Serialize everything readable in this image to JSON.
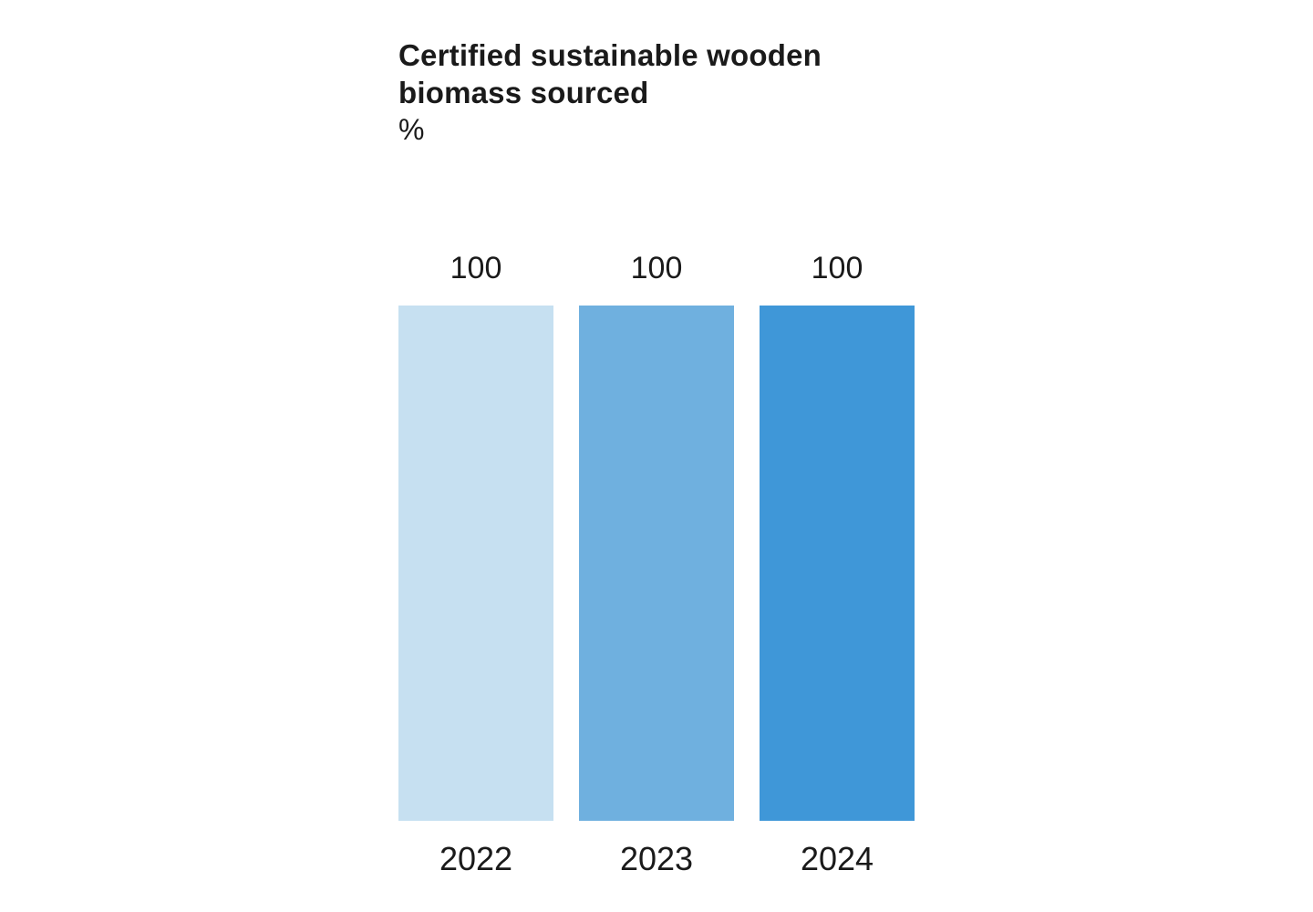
{
  "header": {
    "title_line1": "Certified sustainable wooden",
    "title_line2": "biomass sourced",
    "unit": "%"
  },
  "colors": {
    "background": "#ffffff",
    "text": "#1a1a1a",
    "bar_2022": "#c6e0f1",
    "bar_2023": "#6fb0df",
    "bar_2024": "#3f97d8"
  },
  "chart_data": {
    "type": "bar",
    "title": "Certified sustainable wooden biomass sourced",
    "ylabel": "%",
    "ylim": [
      0,
      100
    ],
    "grid": false,
    "legend": "none",
    "value_labels_position": "above-bars",
    "categories": [
      "2022",
      "2023",
      "2024"
    ],
    "values": [
      100,
      100,
      100
    ],
    "bar_colors": [
      "#c6e0f1",
      "#6fb0df",
      "#3f97d8"
    ]
  }
}
